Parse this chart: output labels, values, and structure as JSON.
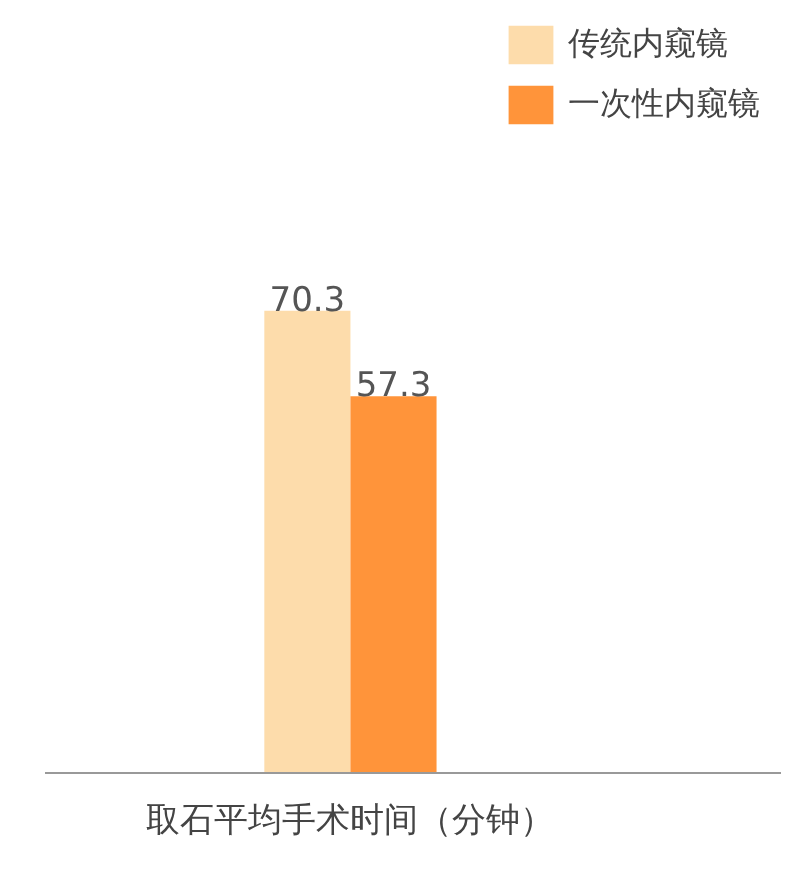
{
  "chart_data": {
    "type": "bar",
    "categories": [
      "取石平均手术时间（分钟）"
    ],
    "series": [
      {
        "name": "传统内窥镜",
        "color": "#fddcab",
        "values": [
          70.3
        ]
      },
      {
        "name": "一次性内窥镜",
        "color": "#ff943a",
        "values": [
          57.3
        ]
      }
    ],
    "data_labels": true,
    "legend": "top right",
    "grid": false
  }
}
